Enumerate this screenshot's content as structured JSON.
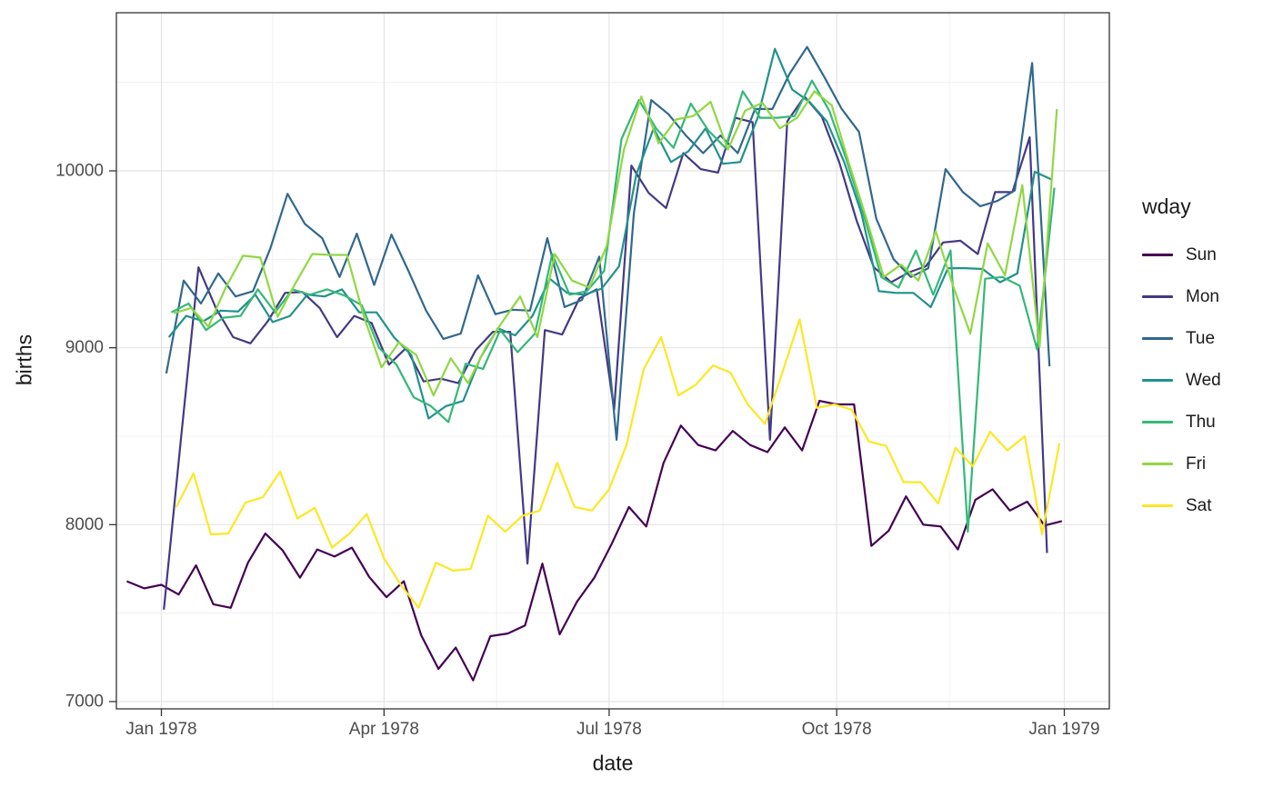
{
  "chart_data": {
    "type": "line",
    "title": "",
    "xlabel": "date",
    "ylabel": "births",
    "grid": true,
    "background": "#ffffff",
    "panel_border_color": "#333333",
    "grid_major_color": "#e4e4e4",
    "grid_minor_color": "#f0f0f0",
    "tick_color": "#333333",
    "tick_label_color": "#4d4d4d",
    "ylim": [
      6950,
      10890
    ],
    "x_axis_unit": "days since 1978-01-01",
    "x_ticks": [
      {
        "label": "Jan 1978",
        "day": 0
      },
      {
        "label": "Apr 1978",
        "day": 90
      },
      {
        "label": "Jul 1978",
        "day": 181
      },
      {
        "label": "Oct 1978",
        "day": 273
      },
      {
        "label": "Jan 1979",
        "day": 365
      }
    ],
    "x_minor_days": [
      45,
      135.5,
      227,
      318.5
    ],
    "y_ticks": [
      7000,
      8000,
      9000,
      10000
    ],
    "y_minor": [
      7500,
      8500,
      9500,
      10500
    ],
    "legend": {
      "title": "wday",
      "position": "right"
    },
    "series": [
      {
        "name": "Sun",
        "color": "#440154",
        "start_day": -14,
        "step": 7,
        "values": [
          7680,
          7640,
          7660,
          7605,
          7770,
          7550,
          7530,
          7785,
          7950,
          7855,
          7700,
          7860,
          7820,
          7870,
          7705,
          7590,
          7680,
          7375,
          7185,
          7305,
          7120,
          7370,
          7385,
          7430,
          7780,
          7380,
          7565,
          7700,
          7890,
          8100,
          7990,
          8350,
          8560,
          8450,
          8420,
          8530,
          8450,
          8410,
          8550,
          8420,
          8700,
          8680,
          8680,
          7880,
          7965,
          8160,
          8000,
          7990,
          7860,
          8140,
          8200,
          8080,
          8130,
          7995,
          8020
        ]
      },
      {
        "name": "Mon",
        "color": "#443983",
        "start_day": 1,
        "step": 7,
        "values": [
          7520,
          8500,
          9455,
          9225,
          9060,
          9025,
          9150,
          9310,
          9315,
          9225,
          9060,
          9180,
          9140,
          8905,
          9000,
          8810,
          8825,
          8800,
          8985,
          9090,
          9090,
          7780,
          9100,
          9075,
          9280,
          9330,
          8650,
          10030,
          9875,
          9790,
          10100,
          10010,
          9990,
          10300,
          10275,
          8480,
          10280,
          10420,
          10305,
          10050,
          9720,
          9455,
          9370,
          9425,
          9460,
          9595,
          9605,
          9530,
          9880,
          9880,
          10190,
          7840
        ]
      },
      {
        "name": "Tue",
        "color": "#31688e",
        "start_day": 2,
        "step": 7,
        "values": [
          8855,
          9380,
          9250,
          9420,
          9290,
          9320,
          9560,
          9870,
          9700,
          9620,
          9400,
          9645,
          9355,
          9640,
          9430,
          9210,
          9050,
          9080,
          9410,
          9190,
          9215,
          9210,
          9620,
          9230,
          9270,
          9515,
          8480,
          9760,
          10400,
          10320,
          10200,
          10100,
          10200,
          10100,
          10350,
          10350,
          10550,
          10700,
          10530,
          10350,
          10220,
          9730,
          9500,
          9400,
          9450,
          10010,
          9880,
          9800,
          9830,
          9890,
          10610,
          8895
        ]
      },
      {
        "name": "Wed",
        "color": "#21918c",
        "start_day": 3,
        "step": 7,
        "values": [
          9060,
          9180,
          9150,
          9210,
          9205,
          9300,
          9145,
          9180,
          9300,
          9290,
          9330,
          9200,
          9200,
          9060,
          8960,
          8600,
          8670,
          8700,
          8945,
          9110,
          9070,
          9180,
          9390,
          9310,
          9300,
          9335,
          9460,
          9980,
          10240,
          10050,
          10110,
          10240,
          10040,
          10050,
          10300,
          10690,
          10460,
          10390,
          10280,
          10050,
          9760,
          9320,
          9310,
          9310,
          9230,
          9450,
          9450,
          9445,
          9370,
          9420,
          9995,
          9950
        ]
      },
      {
        "name": "Thu",
        "color": "#35b779",
        "start_day": 4,
        "step": 7,
        "values": [
          9200,
          9250,
          9100,
          9170,
          9180,
          9330,
          9200,
          9330,
          9300,
          9330,
          9295,
          9240,
          9000,
          8905,
          8720,
          8670,
          8580,
          8910,
          8880,
          9100,
          8975,
          9080,
          9530,
          9300,
          9320,
          9435,
          10180,
          10400,
          10240,
          10130,
          10380,
          10230,
          10130,
          10450,
          10300,
          10300,
          10310,
          10510,
          10340,
          10060,
          9750,
          9400,
          9340,
          9550,
          9300,
          9550,
          7960,
          9390,
          9400,
          9350,
          8990,
          9905
        ]
      },
      {
        "name": "Fri",
        "color": "#90d743",
        "start_day": 5,
        "step": 7,
        "values": [
          9195,
          9225,
          9120,
          9340,
          9520,
          9510,
          9175,
          9360,
          9530,
          9525,
          9525,
          9170,
          8890,
          9030,
          8960,
          8730,
          8940,
          8800,
          9000,
          9150,
          9290,
          9060,
          9530,
          9380,
          9340,
          9575,
          10120,
          10420,
          10155,
          10290,
          10310,
          10390,
          10120,
          10340,
          10385,
          10240,
          10300,
          10450,
          10370,
          10040,
          9730,
          9400,
          9470,
          9380,
          9660,
          9350,
          9080,
          9590,
          9410,
          9920,
          9005,
          10350
        ]
      },
      {
        "name": "Sat",
        "color": "#fde725",
        "start_day": 6,
        "step": 7,
        "values": [
          8100,
          8290,
          7945,
          7950,
          8125,
          8155,
          8300,
          8035,
          8095,
          7870,
          7950,
          8060,
          7810,
          7655,
          7530,
          7785,
          7740,
          7750,
          8050,
          7960,
          8050,
          8080,
          8350,
          8100,
          8080,
          8200,
          8450,
          8880,
          9060,
          8730,
          8790,
          8900,
          8860,
          8680,
          8570,
          8860,
          9160,
          8660,
          8680,
          8650,
          8470,
          8445,
          8240,
          8240,
          8120,
          8435,
          8330,
          8525,
          8420,
          8500,
          7945,
          8460
        ]
      }
    ]
  }
}
